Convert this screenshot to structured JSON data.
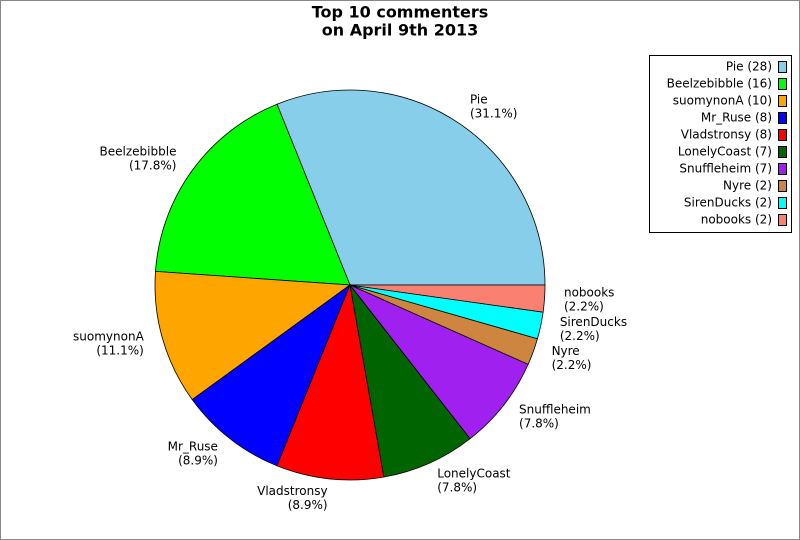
{
  "chart_data": {
    "type": "pie",
    "title": [
      "Top 10 commenters",
      "on April 9th 2013"
    ],
    "categories": [
      "Pie",
      "Beelzebibble",
      "suomynonA",
      "Mr_Ruse",
      "Vladstronsy",
      "LonelyCoast",
      "Snuffleheim",
      "Nyre",
      "SirenDucks",
      "nobooks"
    ],
    "values": [
      28,
      16,
      10,
      8,
      8,
      7,
      7,
      2,
      2,
      2
    ],
    "value_labels": [
      "(31.1%)",
      "(17.8%)",
      "(11.1%)",
      "(8.9%)",
      "(8.9%)",
      "(7.8%)",
      "(7.8%)",
      "(2.2%)",
      "(2.2%)",
      "(2.2%)"
    ],
    "legend_labels": [
      "Pie (28)",
      "Beelzebibble (16)",
      "suomynonA (10)",
      "Mr_Ruse (8)",
      "Vladstronsy (8)",
      "LonelyCoast (7)",
      "Snuffleheim (7)",
      "Nyre (2)",
      "SirenDucks (2)",
      "nobooks (2)"
    ],
    "colors": [
      "#87ceeb",
      "#00ff00",
      "#ffa500",
      "#0000ff",
      "#ff0000",
      "#006400",
      "#a020f0",
      "#cd853f",
      "#00ffff",
      "#fa8072"
    ],
    "legend": "upper right"
  }
}
